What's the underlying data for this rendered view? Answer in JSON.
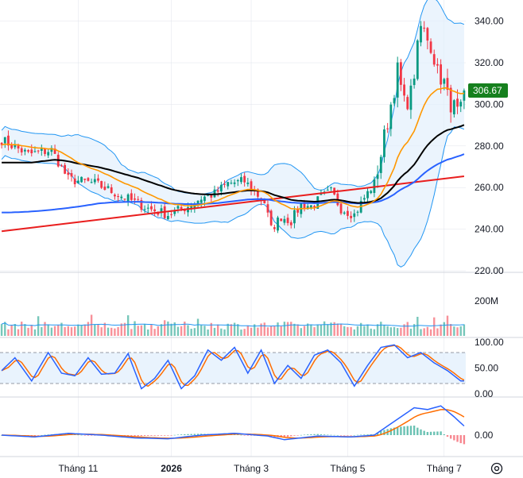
{
  "colors": {
    "up": "#089981",
    "down": "#f23645",
    "bb_band": "#2196f3",
    "bb_fill": "#e3f0fc",
    "ema20": "#ff9800",
    "ema50": "#000000",
    "ema100": "#2962ff",
    "ema200": "#e91e1e",
    "stoch_k": "#2962ff",
    "stoch_d": "#ff6d00",
    "macd": "#2962ff",
    "signal": "#ff6d00",
    "grid": "#e0e3eb",
    "price_tag": "#16801e"
  },
  "last_price_label": "306.67",
  "settings_icon": "gear-icon",
  "chart_data": [
    {
      "type": "candlestick",
      "y_ticks": [
        "340.00",
        "320.00",
        "300.00",
        "280.00",
        "260.00",
        "240.00",
        "220.00"
      ],
      "ylim": [
        220,
        341
      ],
      "x_ticks": [
        {
          "label": "Tháng 11",
          "bold": false,
          "index": 23
        },
        {
          "label": "2026",
          "bold": true,
          "index": 51
        },
        {
          "label": "Tháng 3",
          "bold": false,
          "index": 75
        },
        {
          "label": "Tháng 5",
          "bold": false,
          "index": 104
        },
        {
          "label": "Tháng 7",
          "bold": false,
          "index": 133
        }
      ],
      "n_bars": 140,
      "last_price": 306.67,
      "key_points": [
        [
          0,
          283
        ],
        [
          8,
          276
        ],
        [
          15,
          278
        ],
        [
          20,
          264
        ],
        [
          28,
          262
        ],
        [
          36,
          256
        ],
        [
          44,
          250
        ],
        [
          50,
          247
        ],
        [
          56,
          251
        ],
        [
          60,
          255
        ],
        [
          64,
          257
        ],
        [
          68,
          262
        ],
        [
          73,
          263
        ],
        [
          76,
          258
        ],
        [
          79,
          253
        ],
        [
          81,
          240
        ],
        [
          84,
          246
        ],
        [
          87,
          244
        ],
        [
          90,
          252
        ],
        [
          93,
          251
        ],
        [
          96,
          255
        ],
        [
          99,
          258
        ],
        [
          102,
          250
        ],
        [
          106,
          247
        ],
        [
          109,
          255
        ],
        [
          112,
          262
        ],
        [
          114,
          276
        ],
        [
          117,
          300
        ],
        [
          119,
          316
        ],
        [
          121,
          300
        ],
        [
          123,
          305
        ],
        [
          125,
          326
        ],
        [
          126,
          337
        ],
        [
          128,
          333
        ],
        [
          130,
          322
        ],
        [
          132,
          314
        ],
        [
          134,
          305
        ],
        [
          135,
          294
        ],
        [
          136,
          302
        ],
        [
          139,
          306.67
        ]
      ],
      "ma_lines": [
        "EMA 20",
        "EMA 50",
        "EMA 100",
        "EMA 200",
        "Bollinger Bands"
      ]
    },
    {
      "type": "bar",
      "name": "Volume",
      "y_ticks": [
        "200M"
      ],
      "ylim": [
        0,
        200
      ],
      "note": "volume histogram with moving average line"
    },
    {
      "type": "line",
      "name": "Stochastic",
      "y_ticks": [
        "100.00",
        "50.00",
        "0.00"
      ],
      "ylim": [
        0,
        100
      ],
      "bands": [
        20,
        80
      ],
      "cycle_points": [
        [
          0,
          45
        ],
        [
          4,
          70
        ],
        [
          9,
          25
        ],
        [
          14,
          80
        ],
        [
          18,
          40
        ],
        [
          22,
          35
        ],
        [
          26,
          70
        ],
        [
          30,
          38
        ],
        [
          34,
          40
        ],
        [
          38,
          78
        ],
        [
          42,
          10
        ],
        [
          46,
          30
        ],
        [
          50,
          65
        ],
        [
          54,
          10
        ],
        [
          58,
          35
        ],
        [
          62,
          85
        ],
        [
          66,
          65
        ],
        [
          70,
          90
        ],
        [
          74,
          40
        ],
        [
          78,
          85
        ],
        [
          82,
          20
        ],
        [
          86,
          55
        ],
        [
          90,
          30
        ],
        [
          94,
          75
        ],
        [
          98,
          85
        ],
        [
          102,
          60
        ],
        [
          106,
          15
        ],
        [
          110,
          55
        ],
        [
          114,
          90
        ],
        [
          118,
          95
        ],
        [
          122,
          70
        ],
        [
          126,
          80
        ],
        [
          130,
          60
        ],
        [
          134,
          45
        ],
        [
          138,
          25
        ]
      ]
    },
    {
      "type": "line",
      "name": "MACD",
      "y_ticks": [
        "0.00"
      ],
      "macd_points": [
        [
          0,
          0
        ],
        [
          10,
          -2
        ],
        [
          20,
          2
        ],
        [
          30,
          0
        ],
        [
          40,
          -3
        ],
        [
          50,
          -4
        ],
        [
          60,
          0
        ],
        [
          70,
          2
        ],
        [
          80,
          -1
        ],
        [
          85,
          -5
        ],
        [
          95,
          -1
        ],
        [
          105,
          -2
        ],
        [
          112,
          0
        ],
        [
          118,
          15
        ],
        [
          124,
          30
        ],
        [
          128,
          28
        ],
        [
          132,
          32
        ],
        [
          136,
          20
        ],
        [
          139,
          10
        ]
      ]
    }
  ]
}
